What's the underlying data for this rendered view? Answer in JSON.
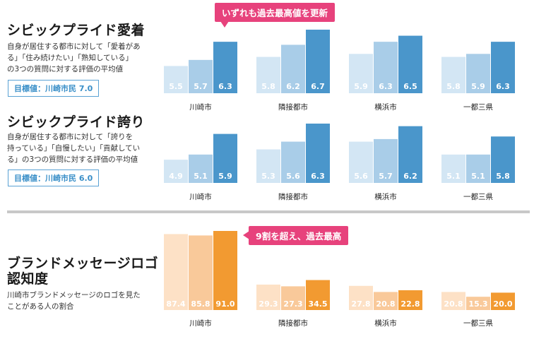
{
  "sections": [
    {
      "title": "シビックプライド愛着",
      "description": "自身が居住する都市に対して「愛着があ\nる」「住み続けたい」「熟知している」\nの3つの質問に対する評価の平均値",
      "goal": "目標値：川崎市民 7.0"
    },
    {
      "title": "シビックプライド誇り",
      "description": "自身が居住する都市に対して「誇りを\n持っている」「自慢したい」「貢献してい\nる」の3つの質問に対する評価の平均値",
      "goal": "目標値：川崎市民 6.0"
    },
    {
      "title": "ブランドメッセージロゴ\n認知度",
      "description": "川崎市ブランドメッセージのロゴを見た\nことがある人の割合",
      "goal": ""
    }
  ],
  "callouts": {
    "top": "いずれも過去最高値を更新",
    "bottom": "9割を超え、過去最高"
  },
  "chart_data": [
    {
      "type": "bar",
      "categories": [
        "川崎市",
        "隣接都市",
        "横浜市",
        "一都三県"
      ],
      "series": [
        {
          "values": [
            5.5,
            5.8,
            5.9,
            5.8
          ]
        },
        {
          "values": [
            5.7,
            6.2,
            6.3,
            5.9
          ]
        },
        {
          "values": [
            6.3,
            6.7,
            6.5,
            6.3
          ]
        }
      ],
      "colors": [
        "#d3e6f4",
        "#a9cde8",
        "#4a96cb"
      ]
    },
    {
      "type": "bar",
      "categories": [
        "川崎市",
        "隣接都市",
        "横浜市",
        "一都三県"
      ],
      "series": [
        {
          "values": [
            4.9,
            5.3,
            5.6,
            5.1
          ]
        },
        {
          "values": [
            5.1,
            5.6,
            5.7,
            5.1
          ]
        },
        {
          "values": [
            5.9,
            6.3,
            6.2,
            5.8
          ]
        }
      ],
      "colors": [
        "#d3e6f4",
        "#a9cde8",
        "#4a96cb"
      ]
    },
    {
      "type": "bar",
      "categories": [
        "川崎市",
        "隣接都市",
        "横浜市",
        "一都三県"
      ],
      "series": [
        {
          "values": [
            87.4,
            29.3,
            27.8,
            20.8
          ]
        },
        {
          "values": [
            85.8,
            27.3,
            20.8,
            15.3
          ]
        },
        {
          "values": [
            91.0,
            34.5,
            22.8,
            20.0
          ]
        }
      ],
      "colors": [
        "#fde1c6",
        "#f9c99a",
        "#f29a31"
      ]
    }
  ]
}
